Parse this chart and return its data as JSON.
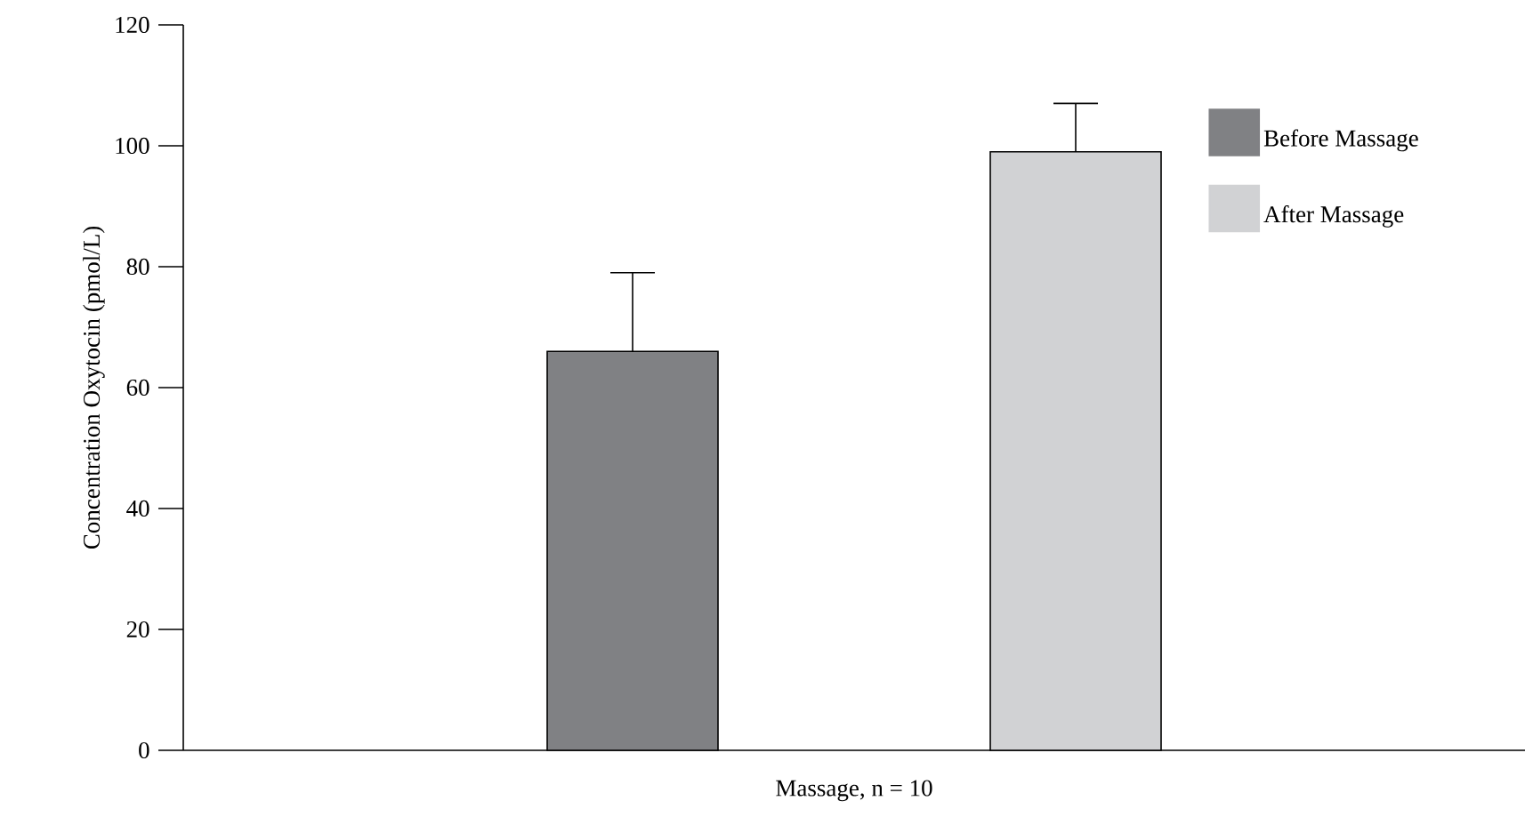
{
  "chart_data": {
    "type": "bar",
    "ylabel": "Concentration Oxytocin (pmol/L)",
    "xlabel": "Massage, n = 10",
    "categories": [
      null
    ],
    "series": [
      {
        "name": "Before Massage",
        "color": "#808184",
        "values": [
          66
        ],
        "errors": [
          [
            66,
            79
          ]
        ]
      },
      {
        "name": "After Massage",
        "color": "#d1d2d4",
        "values": [
          99
        ],
        "errors": [
          [
            99,
            107
          ]
        ]
      }
    ],
    "ylim": [
      0,
      120
    ],
    "yticks": [
      0,
      20,
      40,
      60,
      80,
      100,
      120
    ],
    "legend": "top right"
  }
}
